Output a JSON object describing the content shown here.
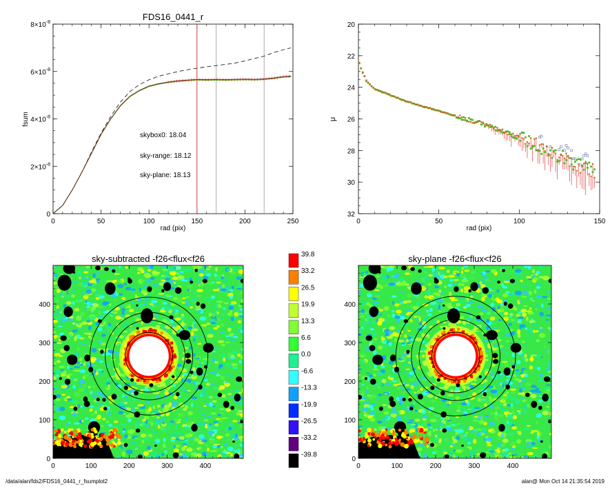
{
  "footer": {
    "left": "/data/alan/fds2/FDS16_0441_r_fsumplot2",
    "right": "alan@  Mon Oct 14 21:35:54 2019"
  },
  "colors": {
    "sum_curve": "#333333",
    "sky_range": "#e8201a",
    "sky_plane": "#44cc22",
    "dashed": "#222222",
    "marker_lines": "#aaaaaa",
    "marker_red": "#d23c3c"
  },
  "chart_data": [
    {
      "type": "line",
      "title": "FDS16_0441_r",
      "xlabel": "rad (pix)",
      "ylabel": "fsum",
      "xlim": [
        0,
        250
      ],
      "ylim": [
        0,
        8e-08
      ],
      "x_ticks": [
        0,
        50,
        100,
        150,
        200,
        250
      ],
      "y_ticks": [
        {
          "value": 0,
          "mant": "0",
          "exp": ""
        },
        {
          "value": 2e-08,
          "mant": "2×10",
          "exp": "-8"
        },
        {
          "value": 4e-08,
          "mant": "4×10",
          "exp": "-8"
        },
        {
          "value": 6e-08,
          "mant": "6×10",
          "exp": "-8"
        },
        {
          "value": 8e-08,
          "mant": "8×10",
          "exp": "-8"
        }
      ],
      "vlines": [
        {
          "x": 150,
          "color": "red"
        },
        {
          "x": 170,
          "color": "gray"
        },
        {
          "x": 220,
          "color": "gray"
        }
      ],
      "annotations": [
        {
          "text": "skybox0: 18.04",
          "color": "black"
        },
        {
          "text": "sky-range: 18.12",
          "color": "red"
        },
        {
          "text": "sky-plane: 18.13",
          "color": "green"
        }
      ],
      "series": [
        {
          "style": "dashed",
          "x": [
            0,
            10,
            20,
            30,
            40,
            50,
            60,
            70,
            80,
            90,
            100,
            110,
            120,
            130,
            140,
            150,
            160,
            170,
            180,
            190,
            200,
            210,
            220,
            230,
            240,
            248
          ],
          "y": [
            0,
            3.5e-09,
            1e-08,
            1.75e-08,
            2.6e-08,
            3.4e-08,
            4.1e-08,
            4.7e-08,
            5.15e-08,
            5.45e-08,
            5.65e-08,
            5.8e-08,
            5.9e-08,
            6e-08,
            6.07e-08,
            6.14e-08,
            6.2e-08,
            6.25e-08,
            6.3e-08,
            6.36e-08,
            6.45e-08,
            6.55e-08,
            6.65e-08,
            6.8e-08,
            6.92e-08,
            7e-08
          ]
        },
        {
          "style": "solid",
          "x": [
            0,
            10,
            20,
            30,
            40,
            50,
            60,
            70,
            80,
            90,
            100,
            110,
            120,
            130,
            140,
            150,
            160,
            170,
            180,
            190,
            200,
            210,
            220,
            230,
            240,
            248
          ],
          "y": [
            0,
            3.5e-09,
            1e-08,
            1.75e-08,
            2.55e-08,
            3.35e-08,
            4e-08,
            4.55e-08,
            4.95e-08,
            5.2e-08,
            5.38e-08,
            5.48e-08,
            5.55e-08,
            5.6e-08,
            5.63e-08,
            5.66e-08,
            5.65e-08,
            5.66e-08,
            5.65e-08,
            5.66e-08,
            5.67e-08,
            5.66e-08,
            5.68e-08,
            5.72e-08,
            5.78e-08,
            5.8e-08
          ]
        }
      ]
    },
    {
      "type": "scatter",
      "title": "",
      "xlabel": "rad (pix)",
      "ylabel": "μ",
      "xlim": [
        0,
        150
      ],
      "ylim": [
        32,
        20
      ],
      "y_inverted": true,
      "x_ticks": [
        0,
        50,
        100,
        150
      ],
      "y_ticks": [
        20,
        22,
        24,
        26,
        28,
        30,
        32
      ],
      "profile": {
        "x": [
          0,
          2,
          5,
          10,
          20,
          30,
          40,
          50,
          60,
          70,
          80,
          90,
          100,
          110,
          120,
          130,
          140,
          147
        ],
        "y": [
          22.3,
          22.9,
          23.6,
          24.1,
          24.5,
          24.9,
          25.2,
          25.5,
          25.8,
          26.1,
          26.4,
          26.8,
          27.2,
          27.6,
          28.1,
          28.6,
          29.1,
          29.3
        ]
      }
    },
    {
      "type": "heatmap",
      "title": "sky-subtracted -f26<flux<f26",
      "x_ticks": [
        0,
        100,
        200,
        300,
        400
      ],
      "y_ticks": [
        0,
        100,
        200,
        300,
        400
      ],
      "xlim": [
        0,
        500
      ],
      "ylim": [
        0,
        500
      ],
      "center": [
        252,
        265
      ],
      "circle_radii": [
        155,
        115,
        95,
        62
      ]
    },
    {
      "type": "heatmap",
      "title": "sky-plane -f26<flux<f26",
      "x_ticks": [
        0,
        100,
        200,
        300,
        400
      ],
      "y_ticks": [
        0,
        100,
        200,
        300,
        400
      ],
      "xlim": [
        0,
        500
      ],
      "ylim": [
        0,
        500
      ],
      "center": [
        252,
        265
      ],
      "circle_radii": [
        155,
        115,
        95,
        62
      ]
    }
  ],
  "colorbar": {
    "labels": [
      "39.8",
      "33.2",
      "26.5",
      "19.9",
      "13.3",
      "6.6",
      "0.0",
      "-6.6",
      "-13.3",
      "-19.9",
      "-26.5",
      "-33.2",
      "-39.8"
    ],
    "colors": [
      "#ff0000",
      "#ff8000",
      "#ffff00",
      "#c0ff30",
      "#80ff30",
      "#30ff30",
      "#20f090",
      "#30ffff",
      "#10a0ff",
      "#0030ff",
      "#3010ff",
      "#600080",
      "#000000"
    ]
  }
}
